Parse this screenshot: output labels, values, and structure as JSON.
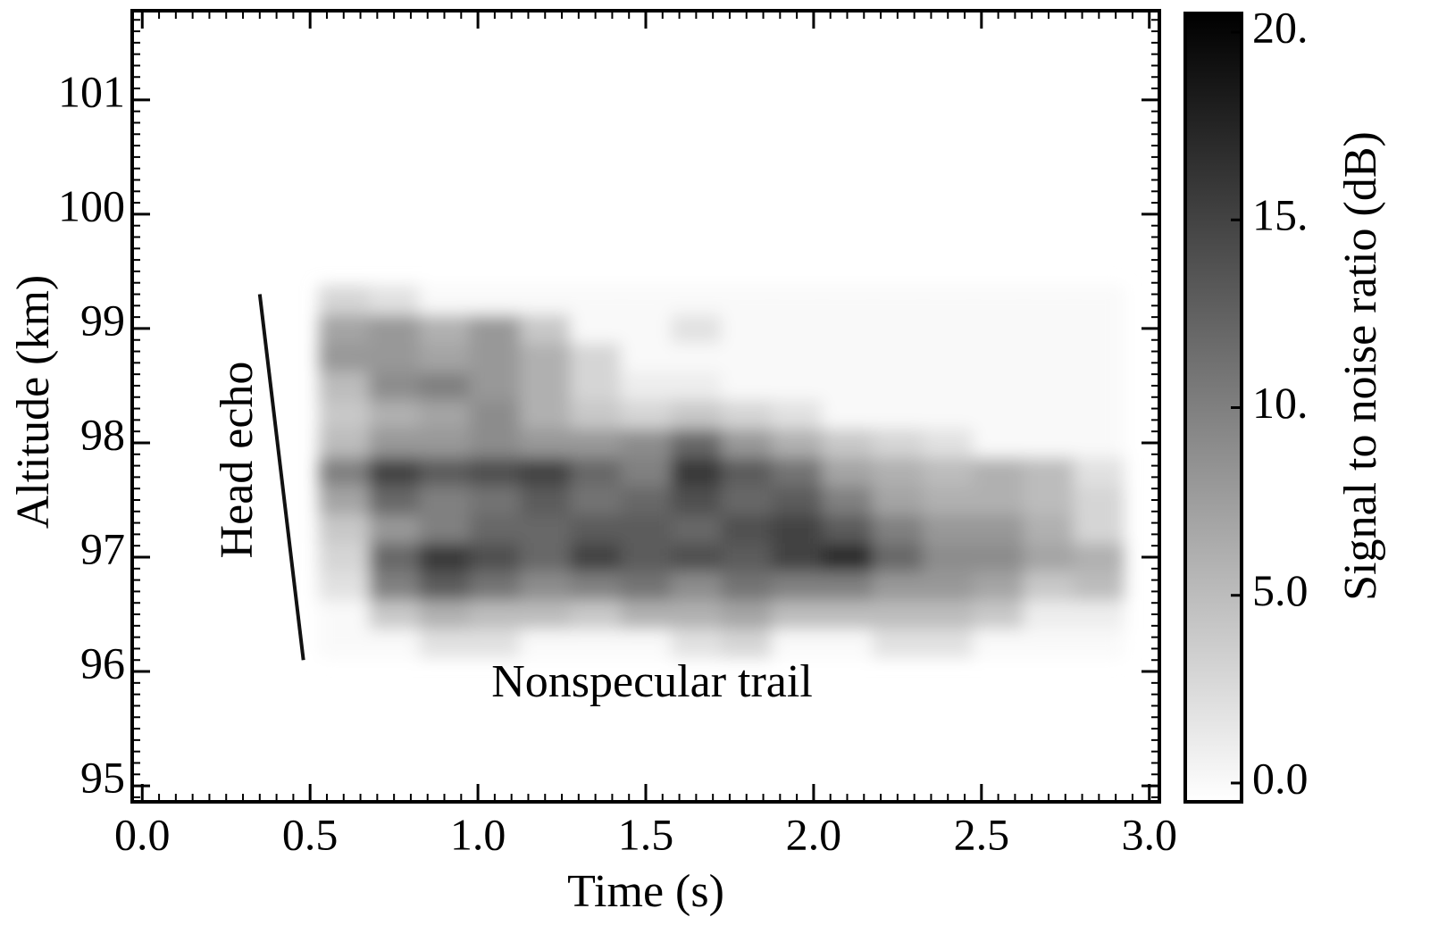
{
  "chart_data": {
    "type": "heatmap",
    "xlabel": "Time (s)",
    "ylabel": "Altitude (km)",
    "colorbar_label": "Signal to noise ratio (dB)",
    "annotations": [
      "Head echo",
      "Nonspecular trail"
    ],
    "xlim": [
      -0.03,
      3.03
    ],
    "xticks": [
      {
        "value": 0,
        "label": "0.0"
      },
      0.5,
      {
        "value": 1,
        "label": "1.0"
      },
      1.5,
      {
        "value": 2,
        "label": "2.0"
      },
      2.5,
      {
        "value": 3,
        "label": "3.0"
      }
    ],
    "ylim": [
      94.86,
      101.78
    ],
    "yticks": [
      95,
      96,
      97,
      98,
      99,
      100,
      101
    ],
    "clim": [
      -0.5,
      20.5
    ],
    "cticks": [
      {
        "value": 0,
        "label": "0.0"
      },
      {
        "value": 5,
        "label": "5.0"
      },
      {
        "value": 10,
        "label": "10."
      },
      {
        "value": 15,
        "label": "15."
      },
      {
        "value": 20,
        "label": "20."
      }
    ],
    "colormap": [
      "#ffffff",
      "#000000"
    ],
    "x": [
      0.6,
      0.75,
      0.9,
      1.05,
      1.2,
      1.35,
      1.5,
      1.65,
      1.8,
      1.95,
      2.1,
      2.25,
      2.4,
      2.55,
      2.7,
      2.85
    ],
    "y": [
      96.25,
      96.5,
      96.75,
      97.0,
      97.25,
      97.5,
      97.75,
      98.0,
      98.25,
      98.5,
      98.75,
      99.0,
      99.25
    ],
    "z": [
      [
        0,
        0,
        2,
        2,
        0,
        0,
        0,
        2,
        3,
        0,
        0,
        2,
        2,
        0,
        0,
        0
      ],
      [
        0,
        4,
        6,
        5,
        5,
        4,
        6,
        6,
        7,
        5,
        5,
        5,
        5,
        4,
        1,
        1
      ],
      [
        2,
        10,
        13,
        11,
        9,
        10,
        11,
        9,
        11,
        10,
        10,
        8,
        8,
        7,
        4,
        5
      ],
      [
        3,
        12,
        16,
        14,
        12,
        15,
        13,
        14,
        13,
        15,
        17,
        12,
        9,
        9,
        7,
        6
      ],
      [
        4,
        8,
        10,
        12,
        12,
        13,
        13,
        12,
        14,
        15,
        13,
        10,
        8,
        8,
        6,
        3
      ],
      [
        7,
        12,
        10,
        11,
        13,
        11,
        12,
        14,
        12,
        13,
        10,
        7,
        6,
        6,
        5,
        3
      ],
      [
        10,
        15,
        13,
        14,
        15,
        12,
        10,
        16,
        13,
        11,
        7,
        6,
        5,
        6,
        5,
        2
      ],
      [
        5,
        8,
        8,
        9,
        8,
        8,
        9,
        12,
        8,
        6,
        4,
        3,
        2,
        0,
        0,
        0
      ],
      [
        4,
        6,
        7,
        9,
        6,
        4,
        3,
        4,
        3,
        2,
        0,
        0,
        0,
        0,
        0,
        0
      ],
      [
        5,
        9,
        10,
        8,
        6,
        3,
        1,
        1,
        0,
        0,
        0,
        0,
        0,
        0,
        0,
        0
      ],
      [
        8,
        8,
        7,
        8,
        6,
        3,
        0,
        0,
        0,
        0,
        0,
        0,
        0,
        0,
        0,
        0
      ],
      [
        7,
        8,
        6,
        8,
        4,
        0,
        0,
        2,
        0,
        0,
        0,
        0,
        0,
        0,
        0,
        0
      ],
      [
        3,
        2,
        0,
        0,
        0,
        0,
        0,
        0,
        0,
        0,
        0,
        0,
        0,
        0,
        0,
        0
      ]
    ],
    "head_echo": {
      "x": [
        0.35,
        0.48
      ],
      "y": [
        99.3,
        96.1
      ]
    }
  }
}
